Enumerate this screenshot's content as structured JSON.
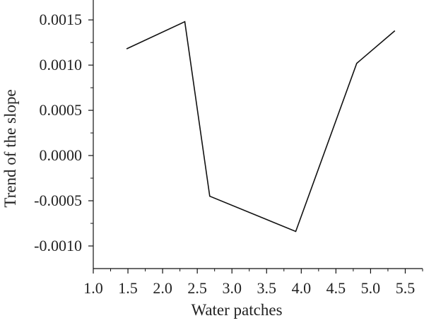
{
  "chart_data": {
    "type": "line",
    "title": "",
    "xlabel": "Water patches",
    "ylabel": "Trend of the slope",
    "xlim": [
      1.0,
      5.75
    ],
    "ylim": [
      -0.00125,
      0.00172
    ],
    "xticks": [
      1.0,
      1.5,
      2.0,
      2.5,
      3.0,
      3.5,
      4.0,
      4.5,
      5.0,
      5.5
    ],
    "xtick_labels": [
      "1.0",
      "1.5",
      "2.0",
      "2.5",
      "3.0",
      "3.5",
      "4.0",
      "4.5",
      "5.0",
      "5.5"
    ],
    "yticks": [
      0.0015,
      0.001,
      0.0005,
      0.0,
      -0.0005,
      -0.001
    ],
    "ytick_labels": [
      "0.0015",
      "0.0010",
      "0.0005",
      "0.0000",
      "-0.0005",
      "-0.0010"
    ],
    "x_minor_ticks": [
      1.25,
      1.75,
      2.25,
      2.75,
      3.25,
      3.75,
      4.25,
      4.75,
      5.25,
      5.75
    ],
    "y_minor_ticks": [
      0.00125,
      0.00075,
      0.00025,
      -0.00025,
      -0.00075
    ],
    "grid": false,
    "legend": "none",
    "series": [
      {
        "x": [
          1.48,
          2.32,
          2.68,
          3.92,
          4.8,
          5.35
        ],
        "y": [
          0.00118,
          0.00148,
          -0.00045,
          -0.00084,
          0.00102,
          0.00138
        ]
      }
    ],
    "colors": {
      "line": "#111111",
      "axes": "#111111",
      "text": "#222222",
      "background": "#ffffff"
    }
  }
}
